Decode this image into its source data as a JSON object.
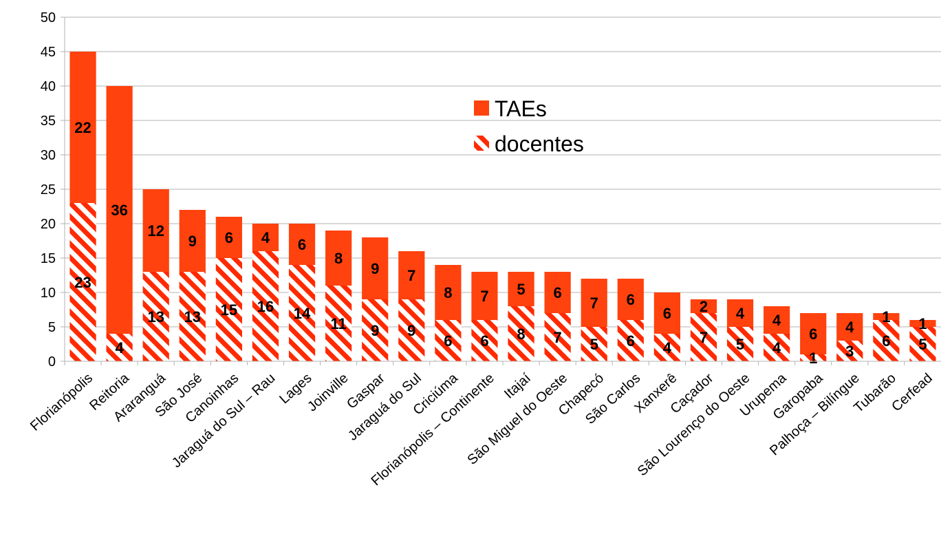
{
  "chart_data": {
    "type": "bar",
    "stacked": true,
    "categories": [
      "Florianópolis",
      "Reitoria",
      "Araranguá",
      "São José",
      "Canoinhas",
      "Jaraguá do Sul – Rau",
      "Lages",
      "Joinville",
      "Gaspar",
      "Jaraguá do Sul",
      "Criciúma",
      "Florianópolis – Continente",
      "Itajaí",
      "São Miguel do Oeste",
      "Chapecó",
      "São Carlos",
      "Xanxerê",
      "Caçador",
      "São Lourenço do Oeste",
      "Urupema",
      "Garopaba",
      "Palhoça – Bilíngue",
      "Tubarão",
      "Cerfead"
    ],
    "series": [
      {
        "name": "docentes",
        "values": [
          23,
          4,
          13,
          13,
          15,
          16,
          14,
          11,
          9,
          9,
          6,
          6,
          8,
          7,
          5,
          6,
          4,
          7,
          5,
          4,
          1,
          3,
          6,
          5
        ],
        "color": "#ff2a00",
        "pattern": "diagonal-stripes"
      },
      {
        "name": "TAEs",
        "values": [
          22,
          36,
          12,
          9,
          6,
          4,
          6,
          8,
          9,
          7,
          8,
          7,
          5,
          6,
          7,
          6,
          6,
          2,
          4,
          4,
          6,
          4,
          1,
          1
        ],
        "color": "#ff420e",
        "pattern": "solid"
      }
    ],
    "ylim": [
      0,
      50
    ],
    "yticks": [
      0,
      5,
      10,
      15,
      20,
      25,
      30,
      35,
      40,
      45,
      50
    ],
    "xlabel": "",
    "ylabel": "",
    "title": "",
    "grid": true,
    "legend_position": "inside-top-center",
    "data_labels": true
  }
}
